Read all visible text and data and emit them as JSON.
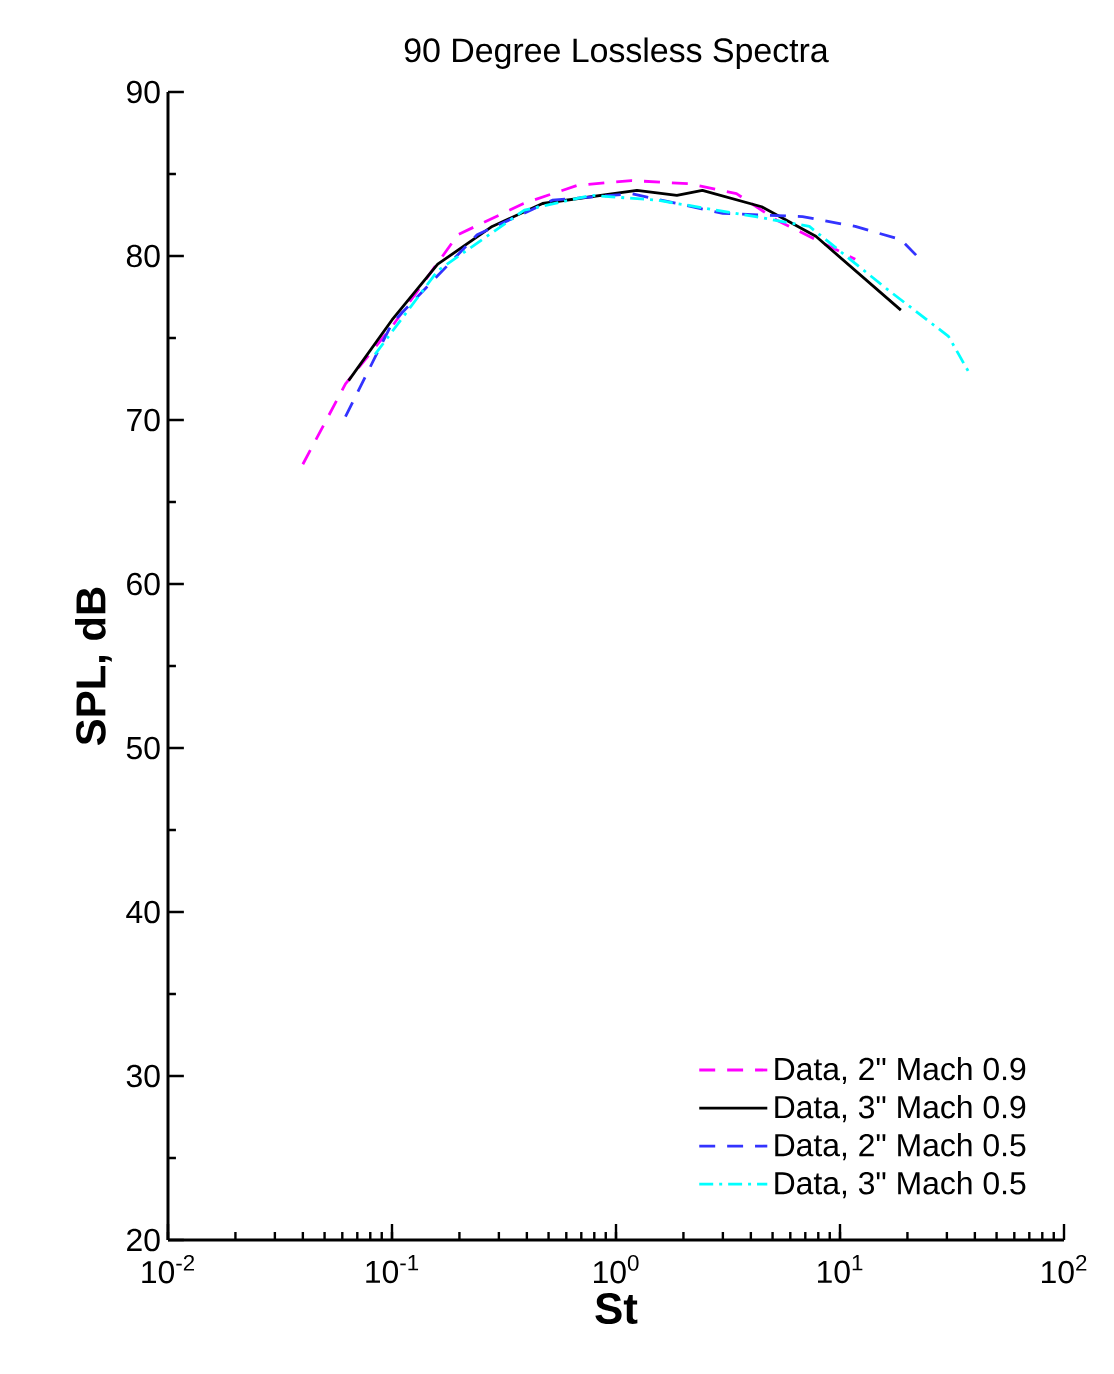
{
  "chart_data": {
    "type": "line",
    "title": "90 Degree Lossless Spectra",
    "xlabel": "St",
    "ylabel": "SPL, dB",
    "log": "x",
    "xlim": [
      0.01,
      100
    ],
    "ylim": [
      20,
      90
    ],
    "xticks": [
      {
        "value": 0.01,
        "label": "10$^{-2}$"
      },
      {
        "value": 0.1,
        "label": "10$^{-1}$"
      },
      {
        "value": 1,
        "label": "10$^{0}$"
      },
      {
        "value": 10,
        "label": "10$^{1}$"
      },
      {
        "value": 100,
        "label": "10$^{2}$"
      }
    ],
    "yticks": [
      20,
      30,
      40,
      50,
      60,
      70,
      80,
      90
    ],
    "legend": "bottom right",
    "grid": false,
    "series": [
      {
        "name": "Data, 2\" Mach 0.9",
        "color": "#ff00ff",
        "line_style": "dashed",
        "x": [
          0.04,
          0.062,
          0.1,
          0.197,
          0.387,
          0.67,
          1.17,
          2.14,
          3.45,
          5.2,
          11.7
        ],
        "values": [
          67.3,
          72.2,
          75.7,
          81.3,
          83.2,
          84.3,
          84.6,
          84.4,
          83.8,
          82.2,
          79.8
        ]
      },
      {
        "name": "Data, 3\" Mach 0.9",
        "color": "#000000",
        "line_style": "solid",
        "x": [
          0.064,
          0.1,
          0.16,
          0.28,
          0.47,
          1.24,
          1.87,
          2.43,
          4.47,
          7.8,
          18.7
        ],
        "values": [
          72.4,
          76.1,
          79.5,
          81.8,
          83.2,
          84.0,
          83.7,
          84.0,
          83.0,
          81.2,
          76.7
        ]
      },
      {
        "name": "Data, 2\" Mach 0.5",
        "color": "#3333ff",
        "line_style": "dashed",
        "x": [
          0.062,
          0.1,
          0.24,
          0.52,
          1.17,
          3.0,
          6.8,
          11.7,
          18.7,
          22.8
        ],
        "values": [
          70.2,
          75.9,
          81.3,
          83.4,
          83.8,
          82.6,
          82.4,
          81.8,
          81.0,
          79.8
        ]
      },
      {
        "name": "Data, 3\" Mach 0.5",
        "color": "#00ffff",
        "line_style": "dashdot",
        "x": [
          0.084,
          0.16,
          0.39,
          0.78,
          1.53,
          4.2,
          7.3,
          16.5,
          30.5,
          38
        ],
        "values": [
          74.0,
          79.1,
          82.8,
          83.7,
          83.4,
          82.4,
          81.8,
          77.9,
          75.1,
          72.8
        ]
      }
    ]
  }
}
